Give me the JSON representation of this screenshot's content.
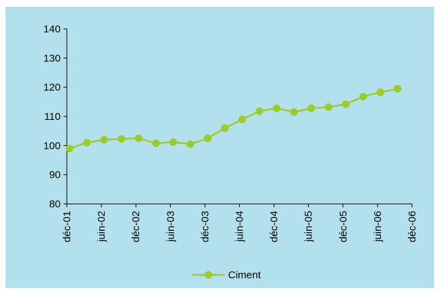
{
  "chart_data": {
    "type": "line",
    "title": "",
    "xlabel": "",
    "ylabel": "",
    "ylim": [
      80,
      140
    ],
    "yticks": [
      80,
      90,
      100,
      110,
      120,
      130,
      140
    ],
    "xtick_labels": [
      "déc-01",
      "juin-02",
      "déc-02",
      "juin-03",
      "déc-03",
      "juin-04",
      "déc-04",
      "juin-05",
      "déc-05",
      "juin-06",
      "déc-06"
    ],
    "grid": false,
    "legend_position": "bottom-center",
    "series": [
      {
        "name": "Ciment",
        "color": "#9ccc2c",
        "marker": "circle",
        "values": [
          99,
          101,
          102,
          102.3,
          102.5,
          100.8,
          101.2,
          100.5,
          102.5,
          106,
          109,
          111.8,
          112.8,
          111.5,
          112.8,
          113.2,
          114.2,
          116.8,
          118.3,
          119.5
        ]
      }
    ]
  }
}
